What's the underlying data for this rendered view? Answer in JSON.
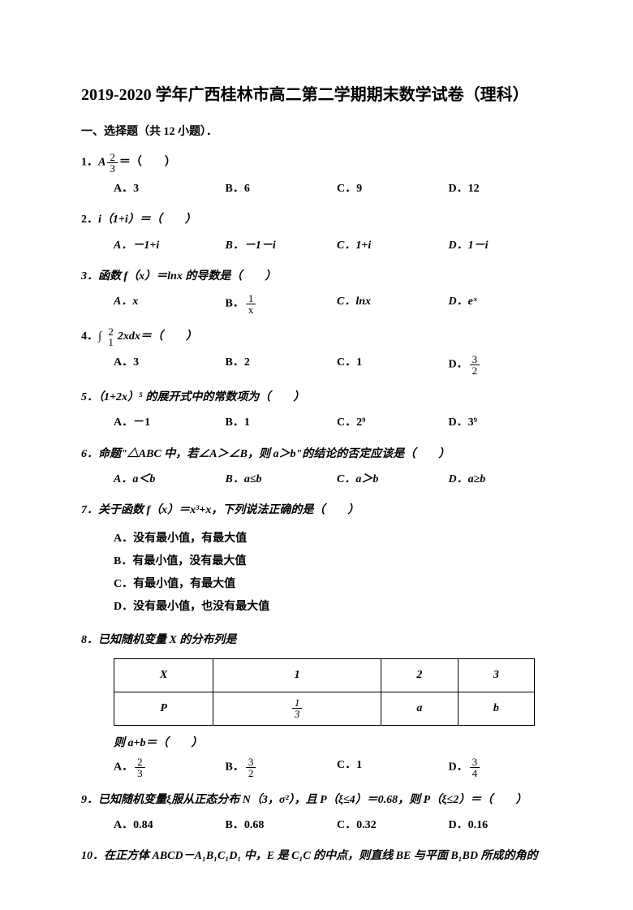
{
  "title": "2019-2020 学年广西桂林市高二第二学期期末数学试卷（理科）",
  "section1": "一、选择题（共 12 小题）．",
  "q1": {
    "stem_prefix": "1．",
    "stem_html": "A",
    "stem_suffix": "＝（　　）",
    "optA": "A．3",
    "optB": "B．6",
    "optC": "C．9",
    "optD": "D．12"
  },
  "q2": {
    "stem": "2．",
    "stem_expr": "i（1+i）＝（　　）",
    "optA": "A．－1+i",
    "optB": "B．－1－i",
    "optC": "C．1+i",
    "optD": "D．1－i"
  },
  "q3": {
    "stem": "3．函数 f（x）＝lnx 的导数是（　　）",
    "optA": "A．x",
    "optB_prefix": "B．",
    "optB_num": "1",
    "optB_den": "x",
    "optC": "C．lnx",
    "optD": "D．eˣ"
  },
  "q4": {
    "stem_prefix": "4．",
    "stem_suffix": "2xdx＝（　　）",
    "optA": "A．3",
    "optB": "B．2",
    "optC": "C．1",
    "optD_prefix": "D．",
    "optD_num": "3",
    "optD_den": "2"
  },
  "q5": {
    "stem": "5．（1+2x）⁵ 的展开式中的常数项为（　　）",
    "optA": "A．－1",
    "optB": "B．1",
    "optC": "C．2⁹",
    "optD": "D．3⁹"
  },
  "q6": {
    "stem": "6．命题\"△ABC 中，若∠A＞∠B，则 a＞b\"的结论的否定应该是（　　）",
    "optA": "A．a＜b",
    "optB": "B．a≤b",
    "optC": "C．a＞b",
    "optD": "D．a≥b"
  },
  "q7": {
    "stem": "7．关于函数 f（x）＝x³+x，下列说法正确的是（　　）",
    "optA": "A．没有最小值，有最大值",
    "optB": "B．有最小值，没有最大值",
    "optC": "C．有最小值，有最大值",
    "optD": "D．没有最小值，也没有最大值"
  },
  "q8": {
    "stem": "8．已知随机变量 X 的分布列是",
    "table": {
      "header": [
        "X",
        "1",
        "2",
        "3"
      ],
      "row": [
        "P",
        "",
        "a",
        "b"
      ],
      "p1_num": "1",
      "p1_den": "3"
    },
    "sub": "则 a+b＝（　　）",
    "optA_prefix": "A．",
    "optA_num": "2",
    "optA_den": "3",
    "optB_prefix": "B．",
    "optB_num": "3",
    "optB_den": "2",
    "optC": "C．1",
    "optD_prefix": "D．",
    "optD_num": "3",
    "optD_den": "4"
  },
  "q9": {
    "stem": "9．已知随机变量ξ服从正态分布 N（3，σ²），且 P（ξ≤4）＝0.68，则 P（ξ≤2）＝（　　）",
    "optA": "A．0.84",
    "optB": "B．0.68",
    "optC": "C．0.32",
    "optD": "D．0.16"
  },
  "q10": {
    "stem": "10．在正方体 ABCD－A₁B₁C₁D₁ 中，E 是 C₁C 的中点，则直线 BE 与平面 B₁BD 所成的角的"
  }
}
